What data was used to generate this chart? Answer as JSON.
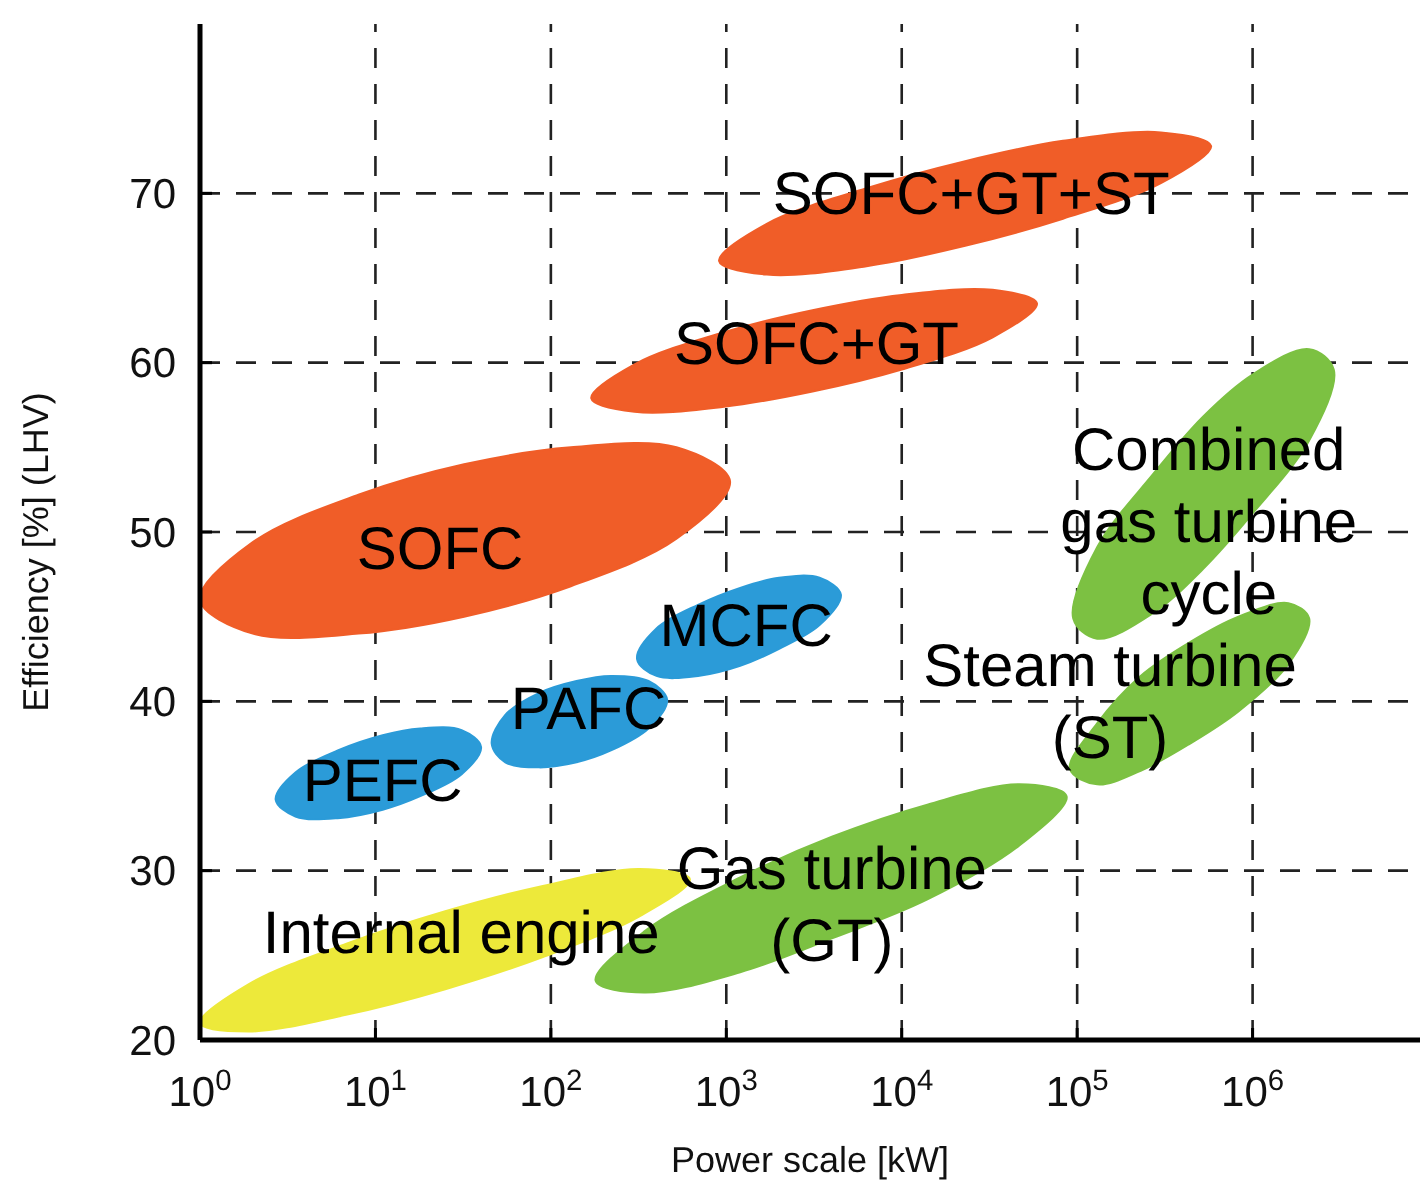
{
  "chart_data": {
    "type": "area",
    "xlabel": "Power scale [kW]",
    "ylabel": "Efficiency [%] (LHV)",
    "log": "x",
    "grid": true,
    "xlim": [
      1,
      9000000
    ],
    "ylim": [
      20,
      80
    ],
    "xticks": [
      {
        "value": 1,
        "label": "10$^{0}$"
      },
      {
        "value": 10,
        "label": "10$^{1}$"
      },
      {
        "value": 100,
        "label": "10$^{2}$"
      },
      {
        "value": 1000,
        "label": "10$^{3}$"
      },
      {
        "value": 10000,
        "label": "10$^{4}$"
      },
      {
        "value": 100000,
        "label": "10$^{5}$"
      },
      {
        "value": 1000000,
        "label": "10$^{6}$"
      }
    ],
    "yticks": [
      20,
      30,
      40,
      50,
      60,
      70
    ],
    "series": [
      {
        "name": "Internal engine",
        "color": "#ede93a",
        "x": [
          1,
          1.9,
          6.9,
          25,
          90,
          320,
          620,
          320,
          90,
          25,
          6.9,
          1.9
        ],
        "values": [
          21,
          23.3,
          25.7,
          27.6,
          29.1,
          30.1,
          29.5,
          27.3,
          24.9,
          23.0,
          21.5,
          20.5
        ]
      },
      {
        "name": "Gas turbine (GT)",
        "color": "#7cc142",
        "x": [
          180,
          340,
          1200,
          4000,
          14000,
          47000,
          87000,
          47000,
          14000,
          4000,
          1200,
          340
        ],
        "values": [
          23.5,
          26.4,
          29.6,
          32.0,
          33.9,
          35.1,
          34.4,
          31.5,
          28.3,
          26.0,
          24.0,
          22.8
        ]
      },
      {
        "name": "Combined gas turbine cycle",
        "color": "#7cc142",
        "x": [
          95000,
          130000,
          270000,
          520000,
          1000000,
          2100000,
          2900000,
          2100000,
          1000000,
          520000,
          270000,
          130000
        ],
        "values": [
          44.9,
          49.1,
          53.4,
          56.8,
          59.3,
          60.8,
          59.6,
          55.4,
          51.1,
          47.8,
          45.2,
          43.7
        ]
      },
      {
        "name": "Steam turbine (ST)",
        "color": "#7cc142",
        "x": [
          91000,
          130000,
          230000,
          440000,
          830000,
          1600000,
          2100000,
          1600000,
          830000,
          440000,
          230000,
          130000
        ],
        "values": [
          36,
          38.7,
          41.5,
          43.5,
          45.0,
          45.8,
          44.9,
          42.2,
          39.4,
          37.5,
          35.9,
          35.1
        ]
      },
      {
        "name": "SOFC+GT+ST",
        "color": "#f05d28",
        "x": [
          910,
          1700,
          6300,
          23000,
          83000,
          300000,
          580000,
          300000,
          83000,
          23000,
          6300,
          1700
        ],
        "values": [
          66,
          68.2,
          70.3,
          71.9,
          73.1,
          73.6,
          72.8,
          70.6,
          68.5,
          66.9,
          65.7,
          65.2
        ]
      },
      {
        "name": "SOFC+GT",
        "color": "#f05d28",
        "x": [
          170,
          300,
          970,
          3100,
          10000,
          33000,
          59000,
          33000,
          10000,
          3100,
          970,
          300
        ],
        "values": [
          57.9,
          59.9,
          61.8,
          63.1,
          64.0,
          64.3,
          63.5,
          61.5,
          59.6,
          58.3,
          57.4,
          57.1
        ]
      },
      {
        "name": "SOFC",
        "color": "#f05d28",
        "x": [
          1,
          2,
          8,
          32,
          130,
          520,
          1050,
          520,
          130,
          32,
          8,
          2
        ],
        "values": [
          46,
          49.4,
          52.2,
          54.0,
          55.0,
          55.0,
          53,
          49.6,
          46.8,
          45.0,
          44.0,
          44.0
        ]
      },
      {
        "name": "MCFC",
        "color": "#2b9bd8",
        "x": [
          310,
          400,
          690,
          1200,
          2000,
          3400,
          4500,
          3400,
          2000,
          1200,
          690,
          400
        ],
        "values": [
          42.5,
          44.3,
          45.7,
          46.7,
          47.3,
          47.3,
          46.3,
          44.5,
          43.1,
          42.1,
          41.5,
          41.5
        ]
      },
      {
        "name": "PAFC",
        "color": "#2b9bd8",
        "x": [
          46,
          55,
          86,
          140,
          220,
          360,
          460,
          360,
          220,
          140,
          86,
          55
        ],
        "values": [
          37.5,
          39.2,
          40.5,
          41.2,
          41.5,
          41.2,
          40.1,
          38.4,
          37.1,
          36.4,
          36.1,
          36.4
        ]
      },
      {
        "name": "PEFC",
        "color": "#2b9bd8",
        "x": [
          2.7,
          3.5,
          6.1,
          11,
          18,
          31,
          40,
          31,
          18,
          11,
          6.1,
          3.5
        ],
        "values": [
          34.2,
          35.8,
          37.1,
          38.0,
          38.4,
          38.3,
          37.3,
          35.7,
          34.4,
          33.6,
          33.1,
          33.2
        ]
      }
    ]
  }
}
